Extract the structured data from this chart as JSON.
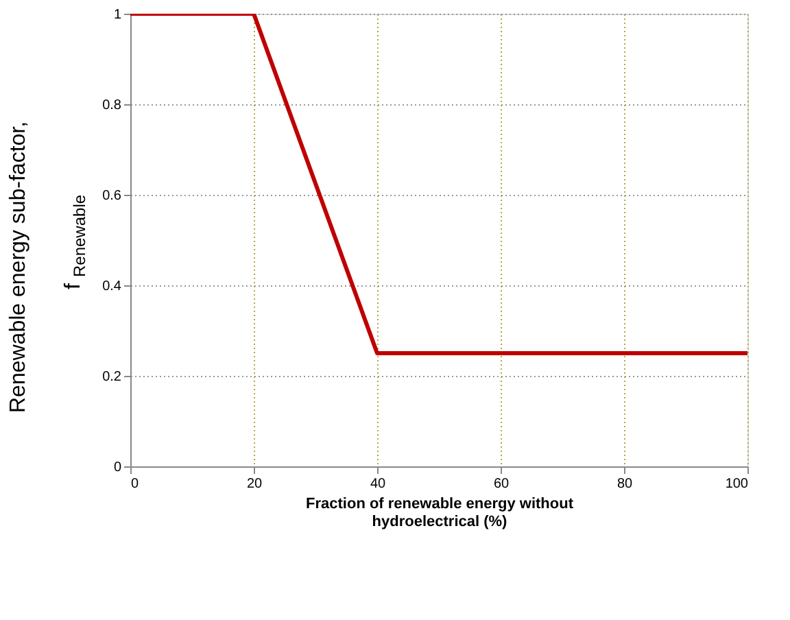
{
  "chart_data": {
    "type": "line",
    "xlabel": "Fraction of renewable energy without\nhydroelectrical (%)",
    "ylabel": "Renewable energy sub-factor,\nf$_{Renewable}$",
    "x": [
      0,
      20,
      40,
      100
    ],
    "series": [
      {
        "color": "#c00000",
        "values": [
          1,
          1,
          0.25,
          0.25
        ]
      }
    ],
    "xlim": [
      0,
      100
    ],
    "xticks": [
      0,
      20,
      40,
      60,
      80,
      100
    ],
    "ylim": [
      0,
      1
    ],
    "yticks": [
      0,
      0.2,
      0.4,
      0.6,
      0.8,
      1
    ],
    "grid": true,
    "marker": "none",
    "line_style": "solid",
    "legend": false
  }
}
